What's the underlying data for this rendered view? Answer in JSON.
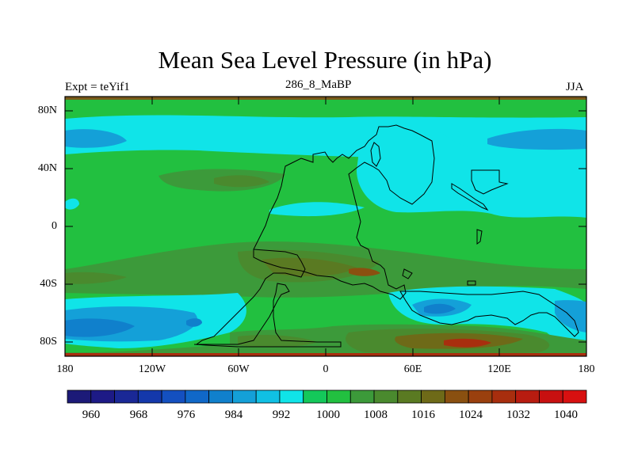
{
  "title": "Mean Sea Level Pressure (in hPa)",
  "subtitle": {
    "left": "Expt = teYif1",
    "center": "286_8_MaBP",
    "right": "JJA"
  },
  "axes": {
    "y_labels": [
      "80N",
      "40N",
      "0",
      "40S",
      "80S"
    ],
    "x_labels": [
      "180",
      "120W",
      "60W",
      "0",
      "60E",
      "120E",
      "180"
    ]
  },
  "colorbar": {
    "labels": [
      "960",
      "968",
      "976",
      "984",
      "992",
      "1000",
      "1008",
      "1016",
      "1024",
      "1032",
      "1040"
    ],
    "colors": [
      "#1c1a78",
      "#1d1a86",
      "#1a2896",
      "#1438ab",
      "#1450c0",
      "#1068c8",
      "#1080cc",
      "#14a0d8",
      "#10c0e4",
      "#10e4e8",
      "#14c85a",
      "#22c040",
      "#3c9a3a",
      "#4a8a2e",
      "#5a7a22",
      "#6e6a18",
      "#8a5010",
      "#9a400e",
      "#a82e0e",
      "#b81c10",
      "#c81010",
      "#d81010"
    ],
    "unit": "hPa"
  }
}
